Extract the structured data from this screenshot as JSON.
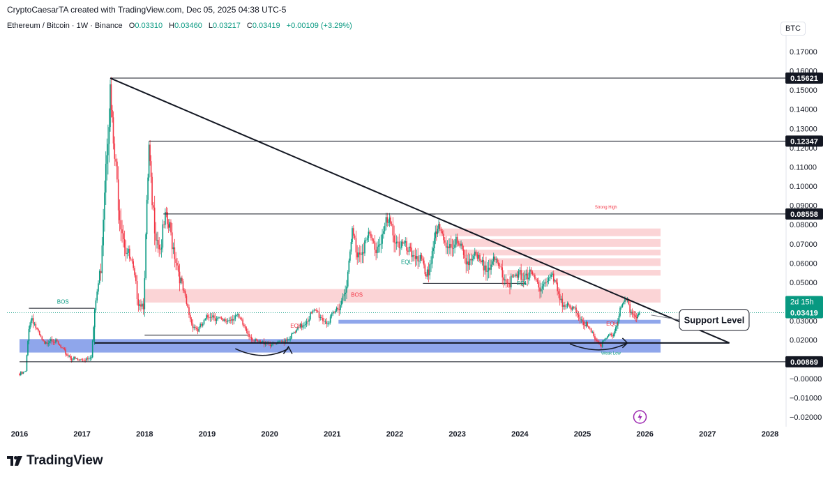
{
  "header": {
    "title": "CryptoCaesarTA created with TradingView.com, Dec 05, 2025 04:38 UTC-5"
  },
  "legend": {
    "symbol": "Ethereum / Bitcoin · 1W · Binance",
    "o_label": "O",
    "o_value": "0.03310",
    "h_label": "H",
    "h_value": "0.03460",
    "l_label": "L",
    "l_value": "0.03217",
    "c_label": "C",
    "c_value": "0.03419",
    "change": "+0.00109 (+3.29%)"
  },
  "currency": "BTC",
  "brand": {
    "name": "TradingView"
  },
  "colors": {
    "up": "#089981",
    "down": "#f23645",
    "zone_red": "#f9c6c8",
    "zone_blue": "#7b97e8",
    "line": "#131722"
  },
  "chart_data": {
    "type": "candlestick",
    "title": "Ethereum / Bitcoin · 1W · Binance",
    "x_range": [
      2016.0,
      2028.2
    ],
    "ylim": [
      -0.025,
      0.18
    ],
    "x_tick_labels": [
      "2016",
      "2017",
      "2018",
      "2019",
      "2020",
      "2021",
      "2022",
      "2023",
      "2024",
      "2025",
      "2026",
      "2027",
      "2028"
    ],
    "y_tick_labels": [
      "0.17000",
      "0.16000",
      "0.15000",
      "0.14000",
      "0.13000",
      "0.12000",
      "0.11000",
      "0.10000",
      "0.09000",
      "0.08000",
      "0.07000",
      "0.06000",
      "0.05000",
      "0.04000",
      "0.03000",
      "0.02000",
      "0.01000",
      "−0.00000",
      "−0.01000",
      "−0.02000"
    ],
    "y_ticks": [
      0.17,
      0.16,
      0.15,
      0.14,
      0.13,
      0.12,
      0.11,
      0.1,
      0.09,
      0.08,
      0.07,
      0.06,
      0.05,
      0.04,
      0.03,
      0.02,
      0.01,
      0.0,
      -0.01,
      -0.02
    ],
    "price_path": [
      [
        2016.0,
        0.0025
      ],
      [
        2016.1,
        0.004
      ],
      [
        2016.15,
        0.028
      ],
      [
        2016.2,
        0.033
      ],
      [
        2016.3,
        0.024
      ],
      [
        2016.4,
        0.018
      ],
      [
        2016.5,
        0.022
      ],
      [
        2016.6,
        0.019
      ],
      [
        2016.7,
        0.015
      ],
      [
        2016.85,
        0.011
      ],
      [
        2016.95,
        0.01
      ],
      [
        2017.05,
        0.011
      ],
      [
        2017.15,
        0.013
      ],
      [
        2017.22,
        0.042
      ],
      [
        2017.3,
        0.06
      ],
      [
        2017.38,
        0.12
      ],
      [
        2017.45,
        0.152
      ],
      [
        2017.5,
        0.125
      ],
      [
        2017.6,
        0.09
      ],
      [
        2017.7,
        0.07
      ],
      [
        2017.8,
        0.06
      ],
      [
        2017.9,
        0.042
      ],
      [
        2017.98,
        0.04
      ],
      [
        2018.02,
        0.075
      ],
      [
        2018.07,
        0.121
      ],
      [
        2018.12,
        0.092
      ],
      [
        2018.18,
        0.08
      ],
      [
        2018.25,
        0.07
      ],
      [
        2018.33,
        0.085
      ],
      [
        2018.4,
        0.08
      ],
      [
        2018.5,
        0.065
      ],
      [
        2018.58,
        0.052
      ],
      [
        2018.65,
        0.042
      ],
      [
        2018.75,
        0.03
      ],
      [
        2018.85,
        0.026
      ],
      [
        2018.95,
        0.03
      ],
      [
        2019.05,
        0.035
      ],
      [
        2019.15,
        0.033
      ],
      [
        2019.25,
        0.03
      ],
      [
        2019.35,
        0.032
      ],
      [
        2019.45,
        0.034
      ],
      [
        2019.55,
        0.03
      ],
      [
        2019.65,
        0.025
      ],
      [
        2019.75,
        0.02
      ],
      [
        2019.85,
        0.019
      ],
      [
        2019.95,
        0.02
      ],
      [
        2020.05,
        0.018
      ],
      [
        2020.15,
        0.019
      ],
      [
        2020.25,
        0.021
      ],
      [
        2020.35,
        0.023
      ],
      [
        2020.45,
        0.026
      ],
      [
        2020.55,
        0.03
      ],
      [
        2020.65,
        0.034
      ],
      [
        2020.75,
        0.036
      ],
      [
        2020.85,
        0.032
      ],
      [
        2020.95,
        0.03
      ],
      [
        2021.05,
        0.036
      ],
      [
        2021.15,
        0.042
      ],
      [
        2021.25,
        0.055
      ],
      [
        2021.32,
        0.078
      ],
      [
        2021.4,
        0.068
      ],
      [
        2021.5,
        0.072
      ],
      [
        2021.6,
        0.075
      ],
      [
        2021.7,
        0.07
      ],
      [
        2021.8,
        0.078
      ],
      [
        2021.88,
        0.083
      ],
      [
        2021.95,
        0.08
      ],
      [
        2022.05,
        0.074
      ],
      [
        2022.15,
        0.07
      ],
      [
        2022.25,
        0.066
      ],
      [
        2022.35,
        0.068
      ],
      [
        2022.45,
        0.06
      ],
      [
        2022.5,
        0.052
      ],
      [
        2022.58,
        0.065
      ],
      [
        2022.65,
        0.08
      ],
      [
        2022.72,
        0.078
      ],
      [
        2022.8,
        0.072
      ],
      [
        2022.9,
        0.074
      ],
      [
        2023.0,
        0.072
      ],
      [
        2023.1,
        0.066
      ],
      [
        2023.2,
        0.065
      ],
      [
        2023.3,
        0.064
      ],
      [
        2023.4,
        0.06
      ],
      [
        2023.5,
        0.063
      ],
      [
        2023.6,
        0.061
      ],
      [
        2023.7,
        0.059
      ],
      [
        2023.8,
        0.052
      ],
      [
        2023.9,
        0.053
      ],
      [
        2024.0,
        0.055
      ],
      [
        2024.1,
        0.057
      ],
      [
        2024.2,
        0.054
      ],
      [
        2024.3,
        0.05
      ],
      [
        2024.4,
        0.052
      ],
      [
        2024.5,
        0.055
      ],
      [
        2024.6,
        0.048
      ],
      [
        2024.7,
        0.04
      ],
      [
        2024.8,
        0.037
      ],
      [
        2024.9,
        0.036
      ],
      [
        2025.0,
        0.032
      ],
      [
        2025.1,
        0.026
      ],
      [
        2025.2,
        0.022
      ],
      [
        2025.25,
        0.02
      ],
      [
        2025.3,
        0.018
      ],
      [
        2025.4,
        0.022
      ],
      [
        2025.5,
        0.024
      ],
      [
        2025.55,
        0.03
      ],
      [
        2025.62,
        0.038
      ],
      [
        2025.7,
        0.041
      ],
      [
        2025.78,
        0.036
      ],
      [
        2025.85,
        0.035
      ],
      [
        2025.9,
        0.033
      ],
      [
        2025.93,
        0.034
      ]
    ],
    "horizontal_levels": [
      {
        "label": "0.15621",
        "y": 0.15621,
        "x_from": 2017.45
      },
      {
        "label": "0.12347",
        "y": 0.12347,
        "x_from": 2018.07
      },
      {
        "label": "0.08558",
        "y": 0.08558,
        "x_from": 2018.3
      },
      {
        "label": "0.00869",
        "y": 0.00869,
        "x_from": 2016.0
      }
    ],
    "current_price": {
      "label": "0.03419",
      "timer": "2d 15h",
      "y": 0.03419
    },
    "trendline": {
      "x1": 2017.45,
      "y1": 0.15621,
      "x2": 2027.35,
      "y2": 0.0185
    },
    "support_line": {
      "x1": 2017.2,
      "y1": 0.0185,
      "x2": 2027.35,
      "y2": 0.0185
    },
    "zones": [
      {
        "kind": "red",
        "x1": 2018.0,
        "x2": 2026.25,
        "y_low": 0.0395,
        "y_high": 0.0465
      },
      {
        "kind": "red",
        "x1": 2022.7,
        "x2": 2026.25,
        "y_low": 0.074,
        "y_high": 0.078
      },
      {
        "kind": "red",
        "x1": 2022.9,
        "x2": 2026.25,
        "y_low": 0.0685,
        "y_high": 0.0725
      },
      {
        "kind": "red",
        "x1": 2023.1,
        "x2": 2026.25,
        "y_low": 0.064,
        "y_high": 0.067
      },
      {
        "kind": "red",
        "x1": 2023.5,
        "x2": 2026.25,
        "y_low": 0.0585,
        "y_high": 0.0625
      },
      {
        "kind": "red",
        "x1": 2023.8,
        "x2": 2026.25,
        "y_low": 0.0535,
        "y_high": 0.0565
      },
      {
        "kind": "blue",
        "x1": 2016.0,
        "x2": 2026.25,
        "y_low": 0.0135,
        "y_high": 0.0205
      },
      {
        "kind": "blue",
        "x1": 2021.1,
        "x2": 2026.25,
        "y_low": 0.0285,
        "y_high": 0.0305
      }
    ],
    "structure_lines": [
      {
        "x1": 2016.15,
        "y1": 0.0365,
        "x2": 2017.2,
        "y2": 0.0365
      },
      {
        "x1": 2018.0,
        "y1": 0.0225,
        "x2": 2019.65,
        "y2": 0.0225
      },
      {
        "x1": 2022.45,
        "y1": 0.0495,
        "x2": 2024.1,
        "y2": 0.0495
      },
      {
        "x1": 2022.5,
        "y1": 0.0855,
        "x2": 2022.65,
        "y2": 0.0855
      }
    ],
    "annotations": [
      {
        "text": "BOS",
        "x": 2016.6,
        "y": 0.039,
        "color": "#089981"
      },
      {
        "text": "BOS",
        "x": 2021.3,
        "y": 0.0425,
        "color": "#f23645"
      },
      {
        "text": "EQH",
        "x": 2020.33,
        "y": 0.0265,
        "color": "#f23645"
      },
      {
        "text": "EQL",
        "x": 2022.1,
        "y": 0.0595,
        "color": "#089981"
      },
      {
        "text": "EQL",
        "x": 2023.95,
        "y": 0.0485,
        "color": "#089981"
      },
      {
        "text": "EQH",
        "x": 2025.38,
        "y": 0.0275,
        "color": "#f23645"
      },
      {
        "text": "Strong High",
        "x": 2025.2,
        "y": 0.0885,
        "color": "#f23645"
      },
      {
        "text": "Weak Low",
        "x": 2025.3,
        "y": 0.0125,
        "color": "#089981"
      }
    ],
    "callout": {
      "text": "Support Level",
      "x": 2026.55,
      "y": 0.0305
    }
  }
}
